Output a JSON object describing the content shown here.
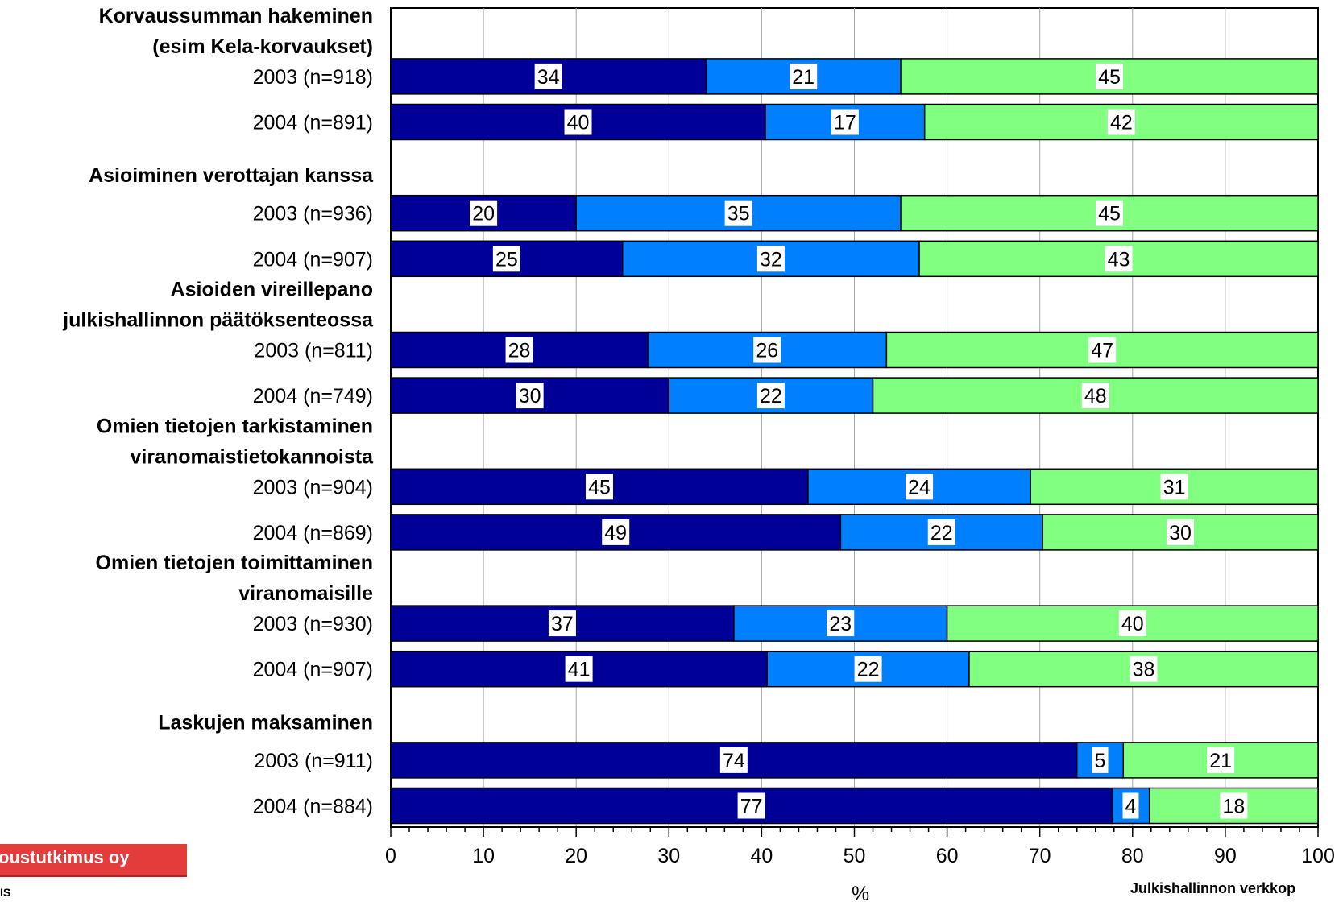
{
  "chart_data": {
    "type": "bar",
    "orientation": "horizontal",
    "stacked": true,
    "groups": [
      {
        "title": "Korvaussumman hakeminen\n(esim Kela-korvaukset)",
        "rows": [
          {
            "label": "2003 (n=918)",
            "values": [
              34,
              21,
              45
            ]
          },
          {
            "label": "2004 (n=891)",
            "values": [
              40,
              17,
              42
            ]
          }
        ]
      },
      {
        "title": "Asioiminen verottajan kanssa",
        "rows": [
          {
            "label": "2003 (n=936)",
            "values": [
              20,
              35,
              45
            ]
          },
          {
            "label": "2004 (n=907)",
            "values": [
              25,
              32,
              43
            ]
          }
        ]
      },
      {
        "title": "Asioiden vireillepano\njulkishallinnon päätöksenteossa",
        "rows": [
          {
            "label": "2003 (n=811)",
            "values": [
              28,
              26,
              47
            ]
          },
          {
            "label": "2004 (n=749)",
            "values": [
              30,
              22,
              48
            ]
          }
        ]
      },
      {
        "title": "Omien tietojen tarkistaminen\nviranomaistietokannoista",
        "rows": [
          {
            "label": "2003 (n=904)",
            "values": [
              45,
              24,
              31
            ]
          },
          {
            "label": "2004 (n=869)",
            "values": [
              49,
              22,
              30
            ]
          }
        ]
      },
      {
        "title": "Omien tietojen toimittaminen\nviranomaisille",
        "rows": [
          {
            "label": "2003 (n=930)",
            "values": [
              37,
              23,
              40
            ]
          },
          {
            "label": "2004 (n=907)",
            "values": [
              41,
              22,
              38
            ]
          }
        ]
      },
      {
        "title": "Laskujen maksaminen",
        "rows": [
          {
            "label": "2003 (n=911)",
            "values": [
              74,
              5,
              21
            ]
          },
          {
            "label": "2004 (n=884)",
            "values": [
              77,
              4,
              18
            ]
          }
        ]
      }
    ],
    "series_colors": [
      "#000099",
      "#0080ff",
      "#80ff80"
    ],
    "xlim": [
      0,
      100
    ],
    "xticks": [
      0,
      10,
      20,
      30,
      40,
      50,
      60,
      70,
      80,
      90,
      100
    ],
    "xlabel": "%",
    "grid": true
  },
  "footer": {
    "logo_text": "oustutkimus oy",
    "logo_sub": "IS",
    "source": "Julkishallinnon verkkop"
  }
}
